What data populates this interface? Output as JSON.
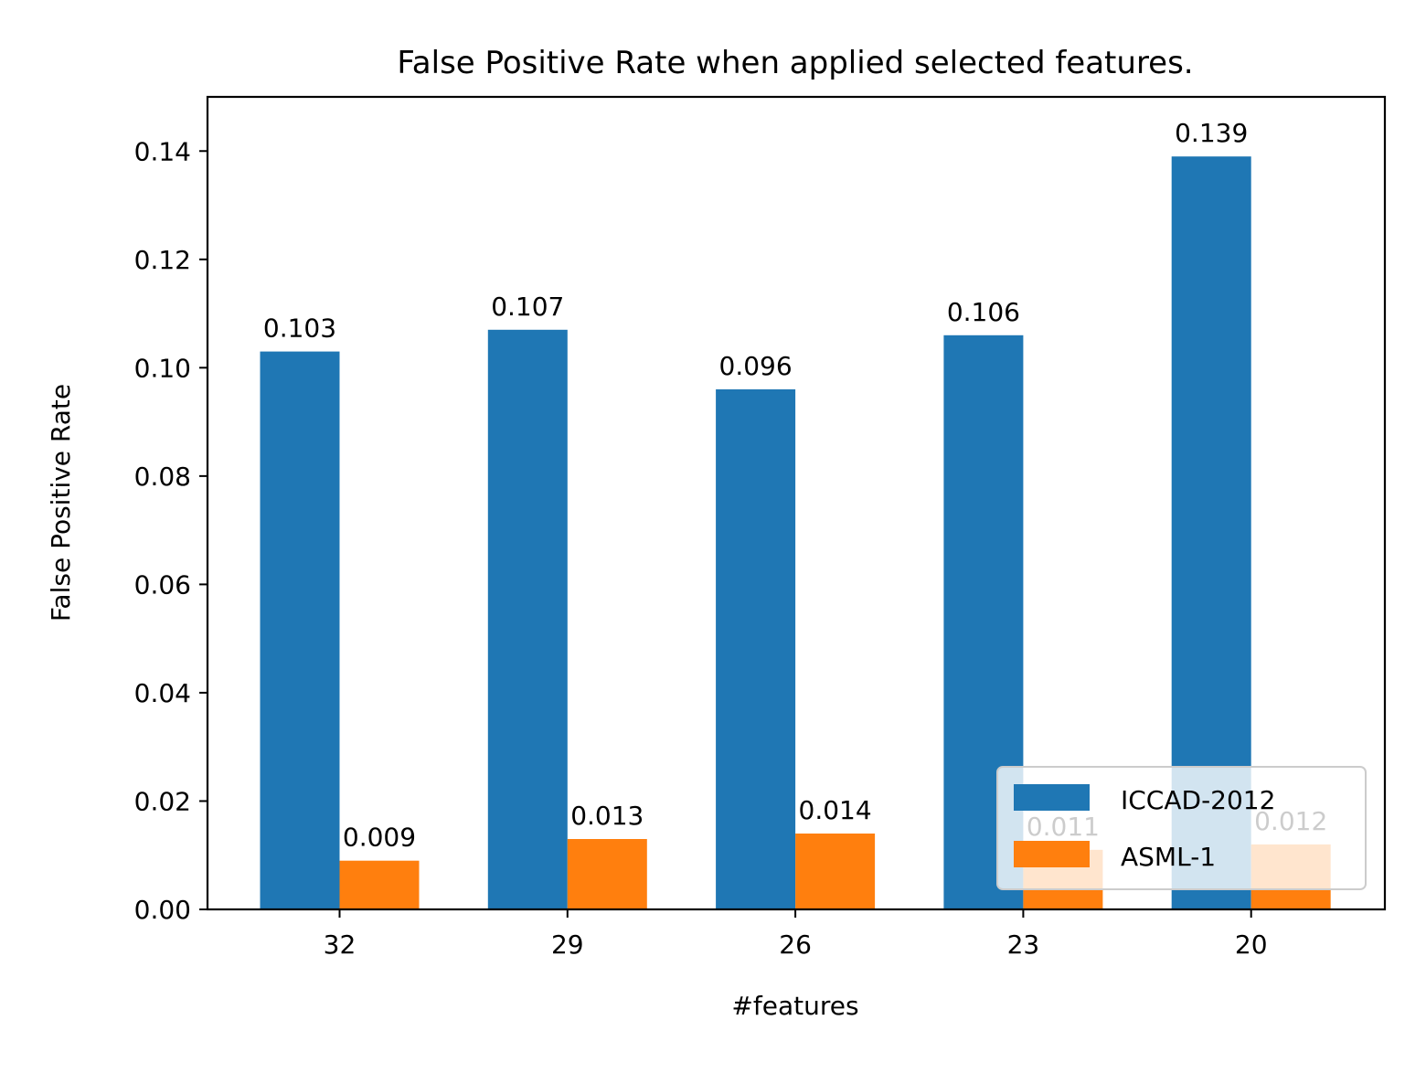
{
  "chart_data": {
    "type": "bar",
    "title": "False Positive Rate when applied selected features.",
    "xlabel": "#features",
    "ylabel": "False Positive Rate",
    "categories": [
      "32",
      "29",
      "26",
      "23",
      "20"
    ],
    "series": [
      {
        "name": "ICCAD-2012",
        "color": "#1f77b4",
        "values": [
          0.103,
          0.107,
          0.096,
          0.106,
          0.139
        ],
        "labels": [
          "0.103",
          "0.107",
          "0.096",
          "0.106",
          "0.139"
        ]
      },
      {
        "name": "ASML-1",
        "color": "#ff7f0e",
        "values": [
          0.009,
          0.013,
          0.014,
          0.011,
          0.012
        ],
        "labels": [
          "0.009",
          "0.013",
          "0.014",
          "0.011",
          "0.012"
        ]
      }
    ],
    "ylim": [
      0,
      0.15
    ],
    "yticks": [
      "0.00",
      "0.02",
      "0.04",
      "0.06",
      "0.08",
      "0.10",
      "0.12",
      "0.14"
    ],
    "grid": false,
    "legend_position": "lower right"
  }
}
